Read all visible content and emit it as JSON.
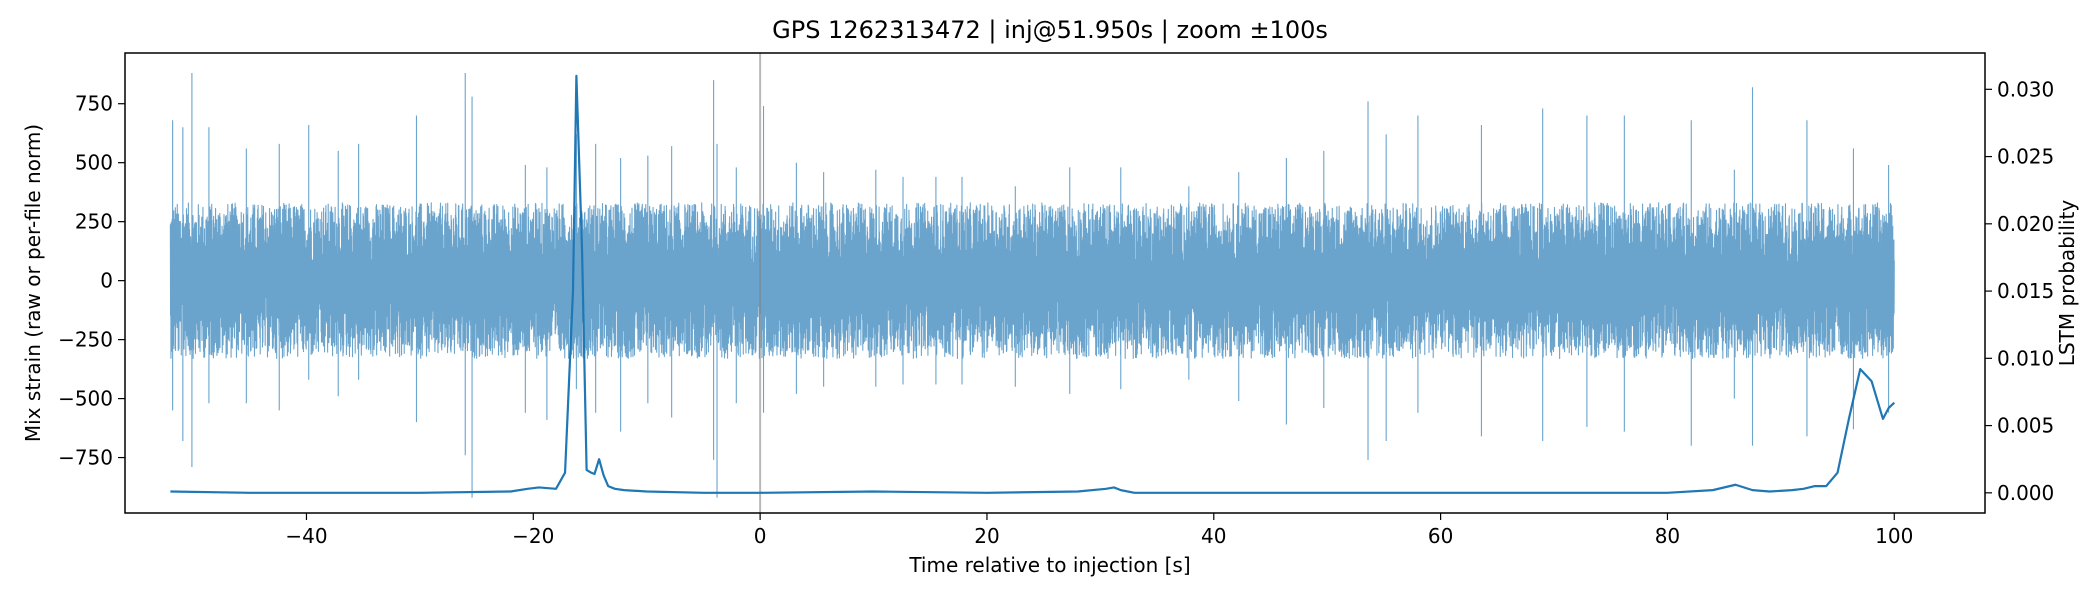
{
  "chart_data": {
    "type": "line",
    "title": "GPS 1262313472 | inj@51.950s | zoom ±100s",
    "xlabel": "Time relative to injection [s]",
    "ylabel_left": "Mix strain (raw or per-file norm)",
    "ylabel_right": "LSTM probability",
    "xlim": [
      -56,
      108
    ],
    "ylim_left": [
      -985,
      965
    ],
    "ylim_right": [
      -0.0015,
      0.0327
    ],
    "x_ticks": [
      -40,
      -20,
      0,
      20,
      40,
      60,
      80,
      100
    ],
    "y_left_ticks": [
      -750,
      -500,
      -250,
      0,
      250,
      500,
      750
    ],
    "y_right_ticks": [
      0.0,
      0.005,
      0.01,
      0.015,
      0.02,
      0.025,
      0.03
    ],
    "y_right_tick_labels": [
      "0.000",
      "0.005",
      "0.010",
      "0.015",
      "0.020",
      "0.025",
      "0.030"
    ],
    "injection_marker_x": 0,
    "strain_range": [
      -52,
      100
    ],
    "series": [
      {
        "axis": "left",
        "color": "#629fca",
        "kind": "dense-oscillation",
        "typical_amplitude": 330,
        "x": [
          -51.8,
          -50.9,
          -50.1,
          -48.6,
          -45.3,
          -42.4,
          -39.8,
          -37.2,
          -35.4,
          -30.3,
          -26.0,
          -25.4,
          -20.7,
          -18.8,
          -16.2,
          -14.5,
          -12.3,
          -9.9,
          -7.8,
          -4.1,
          -3.8,
          -2.1,
          0.3,
          3.2,
          5.6,
          10.2,
          12.6,
          15.5,
          17.8,
          22.5,
          27.3,
          31.8,
          37.8,
          42.2,
          46.4,
          49.7,
          53.6,
          55.2,
          58.0,
          63.6,
          69.0,
          72.9,
          76.2,
          82.1,
          85.9,
          87.5,
          92.3,
          96.4,
          99.5
        ],
        "peak": [
          680,
          650,
          880,
          650,
          560,
          580,
          660,
          550,
          580,
          700,
          880,
          780,
          490,
          480,
          620,
          580,
          520,
          530,
          570,
          850,
          580,
          480,
          740,
          500,
          460,
          470,
          440,
          440,
          440,
          400,
          480,
          480,
          400,
          460,
          520,
          550,
          760,
          620,
          700,
          660,
          730,
          700,
          700,
          680,
          470,
          820,
          680,
          560,
          490
        ],
        "trough": [
          -550,
          -680,
          -790,
          -520,
          -520,
          -550,
          -420,
          -490,
          -420,
          -600,
          -740,
          -920,
          -560,
          -590,
          -460,
          -560,
          -640,
          -520,
          -580,
          -760,
          -920,
          -520,
          -560,
          -480,
          -450,
          -450,
          -440,
          -440,
          -440,
          -450,
          -480,
          -460,
          -420,
          -510,
          -610,
          -540,
          -760,
          -680,
          -560,
          -660,
          -680,
          -620,
          -640,
          -700,
          -500,
          -700,
          -660,
          -630,
          -560
        ]
      },
      {
        "axis": "right",
        "color": "#1f77b4",
        "x": [
          -52,
          -45,
          -30,
          -22,
          -20.5,
          -19.5,
          -18,
          -17.2,
          -16.5,
          -16.2,
          -15.7,
          -15.3,
          -14.9,
          -14.6,
          -14.2,
          -13.8,
          -13.4,
          -12.8,
          -12,
          -10,
          -5,
          0,
          10,
          20,
          28,
          30.5,
          31.2,
          31.8,
          33,
          40,
          60,
          80,
          84,
          86,
          87.5,
          89,
          91,
          92,
          93,
          94,
          95,
          96,
          97,
          98,
          99,
          99.5,
          100
        ],
        "values": [
          0.0001,
          0.0,
          0.0,
          0.0001,
          0.0003,
          0.0004,
          0.0003,
          0.0015,
          0.015,
          0.031,
          0.018,
          0.0017,
          0.0015,
          0.0014,
          0.0025,
          0.0013,
          0.0005,
          0.0003,
          0.0002,
          0.0001,
          0.0,
          0.0,
          0.0001,
          0.0,
          0.0001,
          0.0003,
          0.0004,
          0.0002,
          0.0,
          0.0,
          0.0,
          0.0,
          0.0002,
          0.0006,
          0.0002,
          0.0001,
          0.0002,
          0.0003,
          0.0005,
          0.0005,
          0.0015,
          0.0055,
          0.0092,
          0.0083,
          0.0055,
          0.0063,
          0.0067
        ]
      }
    ]
  }
}
